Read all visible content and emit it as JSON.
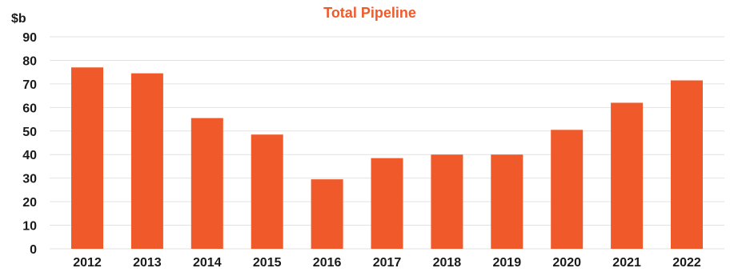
{
  "chart_data": {
    "type": "bar",
    "title": "Total Pipeline",
    "unit_label": "$b",
    "xlabel": "",
    "ylabel": "",
    "categories": [
      "2012",
      "2013",
      "2014",
      "2015",
      "2016",
      "2017",
      "2018",
      "2019",
      "2020",
      "2021",
      "2022"
    ],
    "values": [
      77,
      74.5,
      55.5,
      48.5,
      29.5,
      38.5,
      40,
      40,
      50.5,
      62,
      71.5
    ],
    "ylim": [
      0,
      90
    ],
    "yticks": [
      "0",
      "10",
      "20",
      "30",
      "40",
      "50",
      "60",
      "70",
      "80",
      "90"
    ],
    "grid": true,
    "legend": "none"
  },
  "colors": {
    "bar": "#f05a2b",
    "title": "#f05a2b"
  }
}
